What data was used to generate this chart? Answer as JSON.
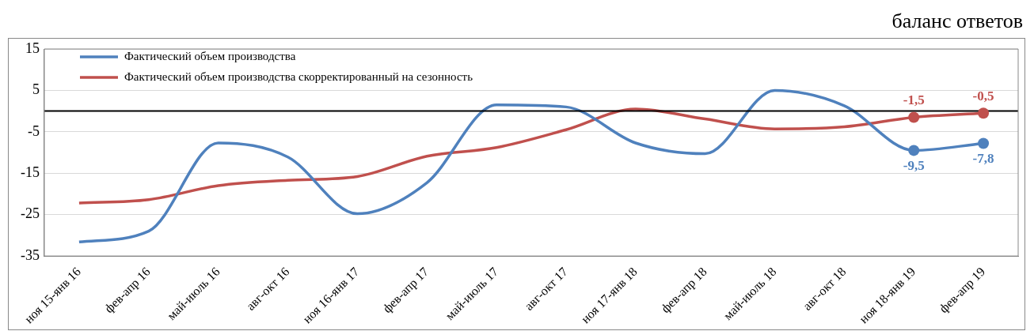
{
  "chart_data": {
    "type": "line",
    "ylabel": "баланс ответов",
    "categories": [
      "ноя 15-янв 16",
      "фев-апр 16",
      "май-июль 16",
      "авг-окт 16",
      "ноя 16-янв 17",
      "фев-апр 17",
      "май-июль 17",
      "авг-окт 17",
      "ноя 17-янв 18",
      "фев-апр 18",
      "май-июль 18",
      "авг-окт 18",
      "ноя 18-янв 19",
      "фев-апр 19"
    ],
    "series": [
      {
        "name": "Фактический объем производства",
        "color": "#4f81bd",
        "values": [
          -31.6,
          -29,
          -7.7,
          -11.1,
          -24.8,
          -17.3,
          1.5,
          1,
          -7.7,
          -10.3,
          5,
          1.3,
          -9.5,
          -7.8
        ],
        "value_labels": [
          null,
          null,
          null,
          null,
          null,
          null,
          null,
          null,
          null,
          null,
          null,
          null,
          "-9,5",
          "-7,8"
        ]
      },
      {
        "name": "Фактический объем производства скорректированный на сезонность",
        "color": "#c0504d",
        "values": [
          -22.2,
          -21.4,
          -18,
          -16.7,
          -15.8,
          -10.9,
          -8.8,
          -4.5,
          0.5,
          -1.9,
          -4.3,
          -3.8,
          -1.5,
          -0.5
        ],
        "value_labels": [
          null,
          null,
          null,
          null,
          null,
          null,
          null,
          null,
          null,
          null,
          null,
          null,
          "-1,5",
          "-0,5"
        ]
      }
    ],
    "ylim": [
      -35,
      15
    ],
    "yticks": [
      -35,
      -25,
      -15,
      -5,
      5,
      15
    ],
    "grid": "y",
    "legend": "top left",
    "line_style": "solid",
    "ref_lines": [
      {
        "axis": "y",
        "value": 0,
        "color": "#000000"
      }
    ]
  }
}
